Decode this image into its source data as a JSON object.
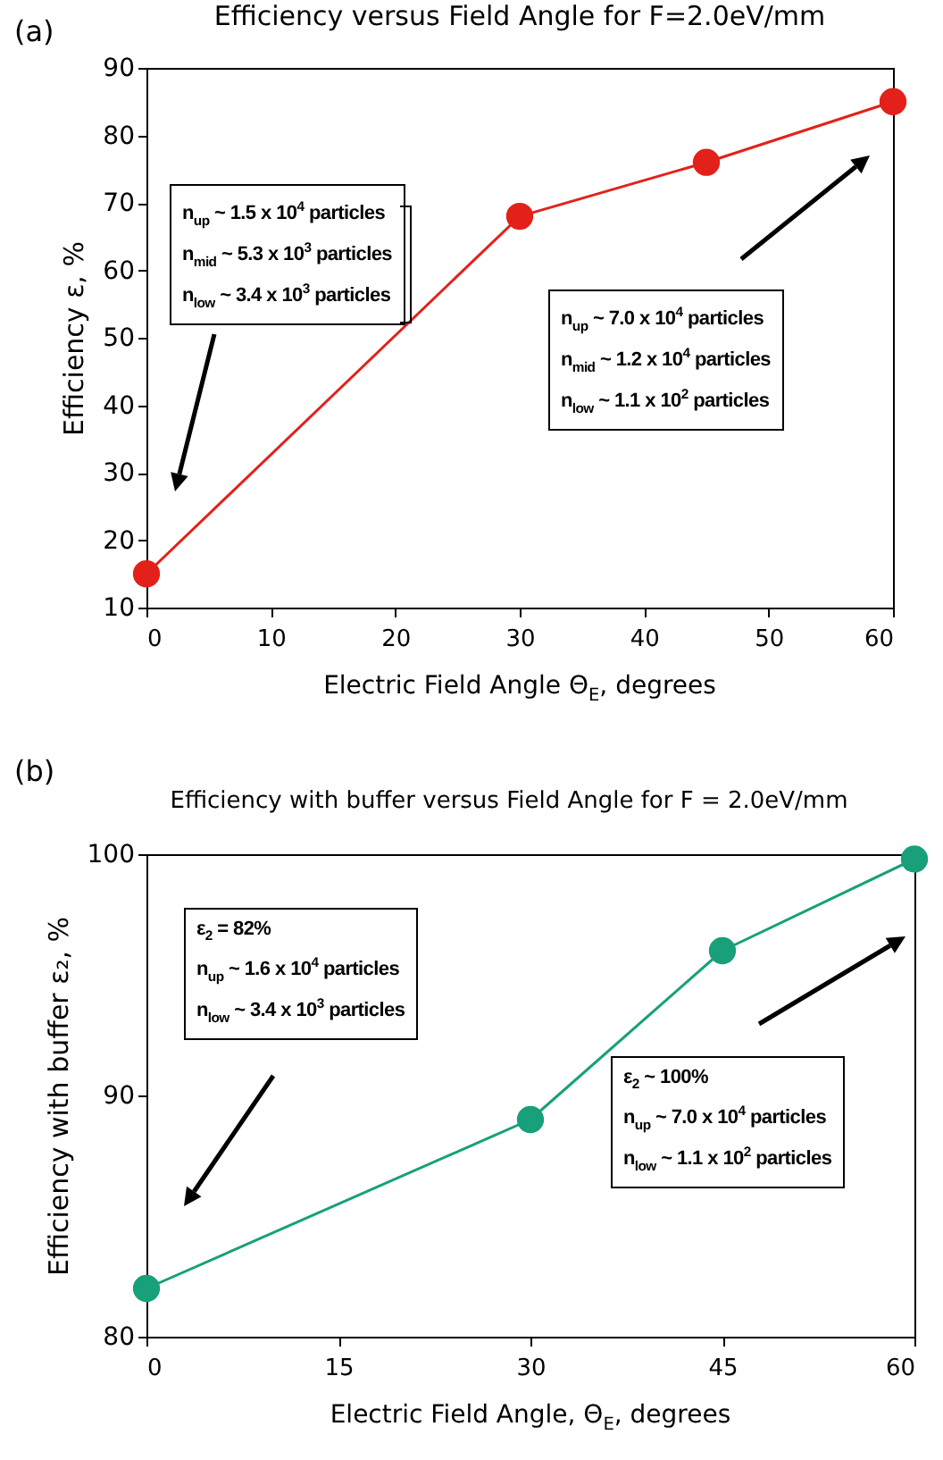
{
  "chart_data": [
    {
      "type": "line",
      "title": "Efficiency versus Field Angle for F=2.0eV/mm",
      "xlabel": "Electric Field Angle Θ$_{E}$, degrees",
      "ylabel": "Efficiency ε, %",
      "x": [
        0,
        30,
        45,
        60
      ],
      "series": [
        {
          "color": "#e3211a",
          "values": [
            15,
            68,
            76,
            85
          ]
        }
      ],
      "xlim": [
        0,
        60
      ],
      "ylim": [
        10,
        90
      ],
      "xticks": [
        0,
        10,
        20,
        30,
        40,
        50,
        60
      ],
      "yticks": [
        10,
        20,
        30,
        40,
        50,
        60,
        70,
        80,
        90
      ],
      "grid": false,
      "marker": "circle",
      "annotations": [
        "(a)",
        "n$_{up}$ ~ 1.5 x 10$^{4}$ particles\nn$_{mid}$ ~ 5.3 x 10$^{3}$ particles\nn$_{low}$ ~ 3.4 x 10$^{3}$ particles",
        "n$_{up}$ ~ 7.0 x 10$^{4}$ particles\nn$_{mid}$ ~ 1.2 x 10$^{4}$ particles\nn$_{low}$ ~ 1.1 x 10$^{2}$ particles"
      ]
    },
    {
      "type": "line",
      "title": "Efficiency with buffer versus Field Angle for F = 2.0eV/mm",
      "xlabel": "Electric Field Angle, Θ$_{E}$, degrees",
      "ylabel": "Efficiency with buffer ε₂, %",
      "x": [
        0,
        30,
        45,
        60
      ],
      "series": [
        {
          "color": "#17a07a",
          "values": [
            82,
            89,
            96,
            99.8
          ]
        }
      ],
      "xlim": [
        0,
        60
      ],
      "ylim": [
        80,
        100
      ],
      "xticks": [
        0,
        15,
        30,
        45,
        60
      ],
      "yticks": [
        80,
        90,
        100
      ],
      "grid": false,
      "marker": "circle",
      "annotations": [
        "(b)",
        "ε$_{2}$ = 82%\nn$_{up}$ ~ 1.6 x 10$^{4}$ particles\nn$_{low}$ ~ 3.4 x 10$^{3}$ particles",
        "ε$_{2}$ ~ 100%\nn$_{up}$ ~ 7.0 x 10$^{4}$ particles\nn$_{low}$ ~ 1.1 x 10$^{2}$ particles"
      ]
    }
  ]
}
